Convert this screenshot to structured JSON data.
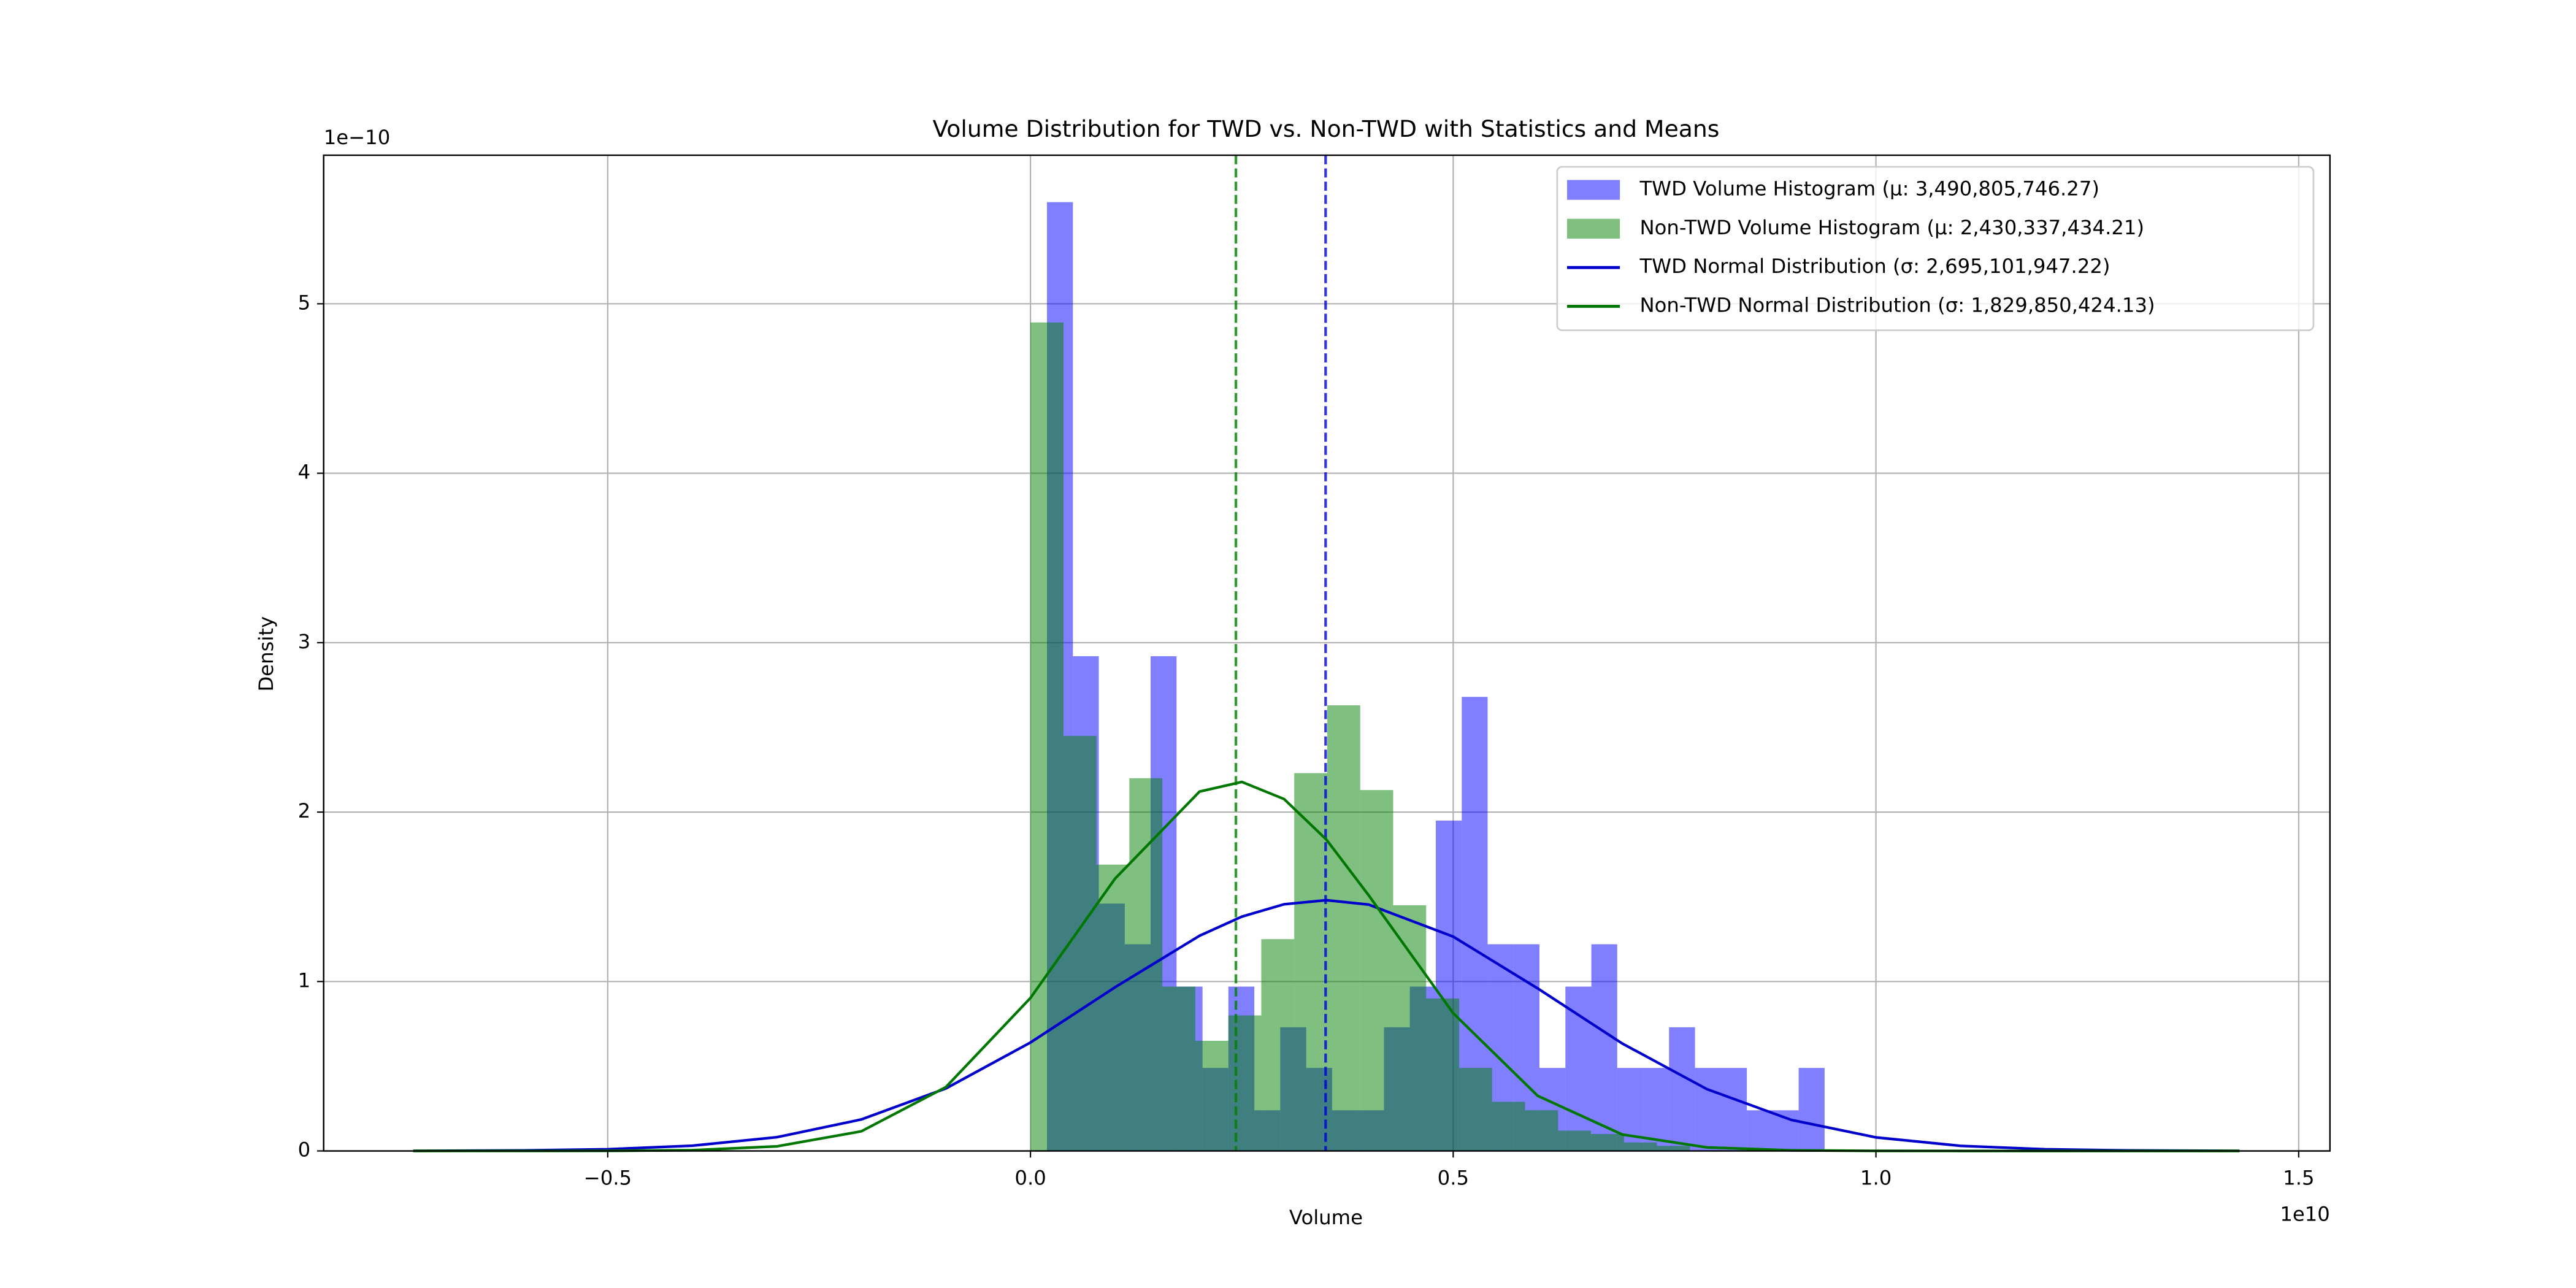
{
  "chart_data": {
    "type": "histogram",
    "title": "Volume Distribution for TWD vs. Non-TWD with Statistics and Means",
    "xlabel": "Volume",
    "ylabel": "Density",
    "x_offset_label": "1e10",
    "y_offset_label": "1e−10",
    "xlim": [
      -0.836,
      1.537
    ],
    "ylim": [
      0,
      5.877
    ],
    "xticks": [
      {
        "value": -0.5,
        "label": "−0.5"
      },
      {
        "value": 0,
        "label": "0.0"
      },
      0.5,
      {
        "value": 1.0,
        "label": "1.0"
      },
      1.5
    ],
    "yticks": [
      0,
      1,
      2,
      3,
      4,
      5
    ],
    "grid": true,
    "legend": "upper right",
    "series": [
      {
        "name": "TWD Volume Histogram (μ: 3,490,805,746.27)",
        "type": "histogram",
        "color": "rgba(0,0,255,0.5)",
        "bins": [
          0.0195,
          0.0502,
          0.0808,
          0.1115,
          0.1421,
          0.1728,
          0.2035,
          0.2341,
          0.2648,
          0.2954,
          0.3261,
          0.3568,
          0.3874,
          0.4181,
          0.4487,
          0.4794,
          0.5101,
          0.5407,
          0.5714,
          0.602,
          0.6327,
          0.6634,
          0.694,
          0.7247,
          0.7553,
          0.786,
          0.8167,
          0.8473,
          0.878,
          0.9086,
          0.9393
        ],
        "values": [
          5.6,
          2.92,
          1.46,
          1.22,
          2.92,
          0.97,
          0.49,
          0.97,
          0.24,
          0.73,
          0.49,
          0.24,
          0.24,
          0.73,
          0.97,
          1.95,
          2.68,
          1.22,
          1.22,
          0.49,
          0.97,
          1.22,
          0.49,
          0.49,
          0.73,
          0.49,
          0.49,
          0.24,
          0.24,
          0.49
        ]
      },
      {
        "name": "Non-TWD Volume Histogram (μ: 2,430,337,434.21)",
        "type": "histogram",
        "color": "rgba(0,128,0,0.5)",
        "bins": [
          0,
          0.039,
          0.078,
          0.117,
          0.156,
          0.195,
          0.234,
          0.273,
          0.312,
          0.351,
          0.39,
          0.429,
          0.468,
          0.507,
          0.546,
          0.585,
          0.624,
          0.663,
          0.702,
          0.741,
          0.78
        ],
        "values": [
          4.89,
          2.45,
          1.69,
          2.2,
          0.97,
          0.65,
          0.8,
          1.25,
          2.23,
          2.63,
          2.13,
          1.45,
          0.9,
          0.49,
          0.29,
          0.24,
          0.12,
          0.1,
          0.05,
          0.03
        ]
      },
      {
        "name": "TWD Normal Distribution (σ: 2,695,101,947.22)",
        "type": "line",
        "color": "#0000cc",
        "x": [
          -0.73,
          -0.6,
          -0.5,
          -0.4,
          -0.3,
          -0.2,
          -0.1,
          0,
          0.1,
          0.2,
          0.25,
          0.3,
          0.35,
          0.4,
          0.5,
          0.6,
          0.7,
          0.8,
          0.9,
          1.0,
          1.1,
          1.2,
          1.3,
          1.43
        ],
        "values": [
          0.0005,
          0.003,
          0.01,
          0.031,
          0.081,
          0.186,
          0.369,
          0.64,
          0.966,
          1.27,
          1.383,
          1.456,
          1.48,
          1.454,
          1.265,
          0.959,
          0.634,
          0.365,
          0.183,
          0.08,
          0.03,
          0.01,
          0.003,
          0.0005
        ]
      },
      {
        "name": "Non-TWD Normal Distribution (σ: 1,829,850,424.13)",
        "type": "line",
        "color": "#007700",
        "x": [
          -0.73,
          -0.6,
          -0.5,
          -0.4,
          -0.3,
          -0.2,
          -0.1,
          0,
          0.1,
          0.2,
          0.25,
          0.3,
          0.35,
          0.4,
          0.5,
          0.6,
          0.7,
          0.8,
          0.9,
          1.0,
          1.1,
          1.2,
          1.3,
          1.43
        ],
        "values": [
          0,
          0.0001,
          0.0006,
          0.0045,
          0.027,
          0.116,
          0.377,
          0.903,
          1.607,
          2.121,
          2.178,
          2.077,
          1.838,
          1.509,
          0.813,
          0.325,
          0.097,
          0.021,
          0.0035,
          0.0004,
          0,
          0,
          0,
          0
        ]
      }
    ],
    "mean_lines": [
      {
        "value": 0.3491,
        "color": "rgba(0,0,220,0.8)"
      },
      {
        "value": 0.243,
        "color": "rgba(0,128,0,0.8)"
      }
    ]
  }
}
